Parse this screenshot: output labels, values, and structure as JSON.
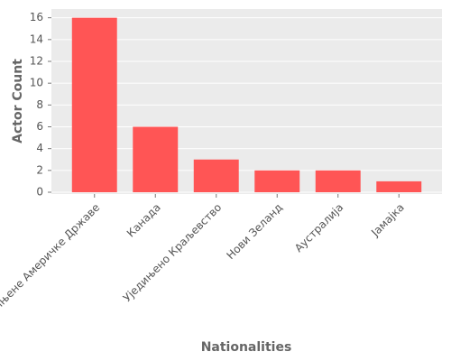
{
  "chart_data": {
    "type": "bar",
    "x_label": "Nationalities",
    "y_label": "Actor Count",
    "categories": [
      "Сједињене Америчке Државе",
      "Канада",
      "Уједињено Краљевство",
      "Нови Зеланд",
      "Аустралија",
      "Јамајка"
    ],
    "values": [
      16,
      6,
      3,
      2,
      2,
      1
    ],
    "color": "#ff5555",
    "ylim": [
      0,
      16.8
    ],
    "yticks": [
      0,
      2,
      4,
      6,
      8,
      10,
      12,
      14,
      16
    ],
    "grid": true
  }
}
